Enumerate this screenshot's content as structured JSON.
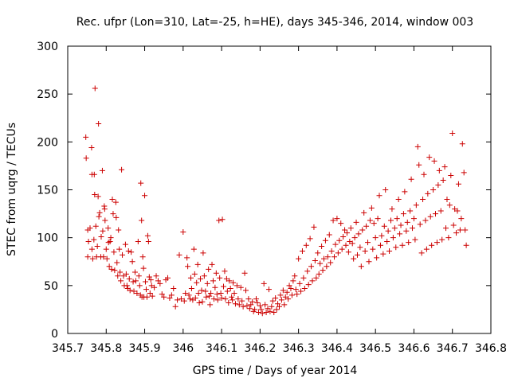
{
  "chart_data": {
    "type": "scatter",
    "title": "Rec. ufpr (Lon=310, Lat=-25, h=HE), days 345-346, 2014, window 003",
    "xlabel": "GPS time / Days of year 2014",
    "ylabel": "STEC from uqrg / TECUs",
    "xlim": [
      345.7,
      346.8
    ],
    "ylim": [
      0,
      300
    ],
    "xticks": [
      345.7,
      345.8,
      345.9,
      346.0,
      346.1,
      346.2,
      346.3,
      346.4,
      346.5,
      346.6,
      346.7,
      346.8
    ],
    "xtick_labels": [
      "345.7",
      "345.8",
      "345.9",
      "346",
      "346.1",
      "346.2",
      "346.3",
      "346.4",
      "346.5",
      "346.6",
      "346.7",
      "346.8"
    ],
    "yticks": [
      0,
      50,
      100,
      150,
      200,
      250,
      300
    ],
    "ytick_labels": [
      "0",
      "50",
      "100",
      "150",
      "200",
      "250",
      "300"
    ],
    "grid": false,
    "marker": "plus",
    "color": "#cc0000",
    "points": [
      [
        345.747,
        205
      ],
      [
        345.748,
        183
      ],
      [
        345.752,
        108
      ],
      [
        345.754,
        96
      ],
      [
        345.752,
        80
      ],
      [
        345.758,
        110
      ],
      [
        345.762,
        194
      ],
      [
        345.763,
        166
      ],
      [
        345.763,
        88
      ],
      [
        345.765,
        78
      ],
      [
        345.768,
        98
      ],
      [
        345.769,
        166
      ],
      [
        345.77,
        145
      ],
      [
        345.771,
        256
      ],
      [
        345.773,
        112
      ],
      [
        345.775,
        80
      ],
      [
        345.777,
        91
      ],
      [
        345.779,
        143
      ],
      [
        345.78,
        219
      ],
      [
        345.781,
        122
      ],
      [
        345.783,
        126
      ],
      [
        345.786,
        80
      ],
      [
        345.787,
        101
      ],
      [
        345.79,
        170
      ],
      [
        345.791,
        107
      ],
      [
        345.793,
        80
      ],
      [
        345.795,
        133
      ],
      [
        345.796,
        130
      ],
      [
        345.797,
        118
      ],
      [
        345.8,
        88
      ],
      [
        345.802,
        78
      ],
      [
        345.805,
        110
      ],
      [
        345.806,
        95
      ],
      [
        345.808,
        70
      ],
      [
        345.81,
        96
      ],
      [
        345.812,
        100
      ],
      [
        345.814,
        67
      ],
      [
        345.816,
        140
      ],
      [
        345.818,
        125
      ],
      [
        345.82,
        85
      ],
      [
        345.822,
        66
      ],
      [
        345.825,
        137
      ],
      [
        345.826,
        121
      ],
      [
        345.828,
        74
      ],
      [
        345.83,
        60
      ],
      [
        345.832,
        108
      ],
      [
        345.834,
        88
      ],
      [
        345.836,
        64
      ],
      [
        345.838,
        55
      ],
      [
        345.84,
        171
      ],
      [
        345.842,
        82
      ],
      [
        345.845,
        60
      ],
      [
        345.847,
        50
      ],
      [
        345.85,
        93
      ],
      [
        345.852,
        62
      ],
      [
        345.854,
        50
      ],
      [
        345.856,
        47
      ],
      [
        345.858,
        86
      ],
      [
        345.86,
        57
      ],
      [
        345.862,
        45
      ],
      [
        345.865,
        85
      ],
      [
        345.868,
        75
      ],
      [
        345.87,
        54
      ],
      [
        345.872,
        44
      ],
      [
        345.875,
        64
      ],
      [
        345.877,
        55
      ],
      [
        345.88,
        42
      ],
      [
        345.883,
        96
      ],
      [
        345.885,
        60
      ],
      [
        345.887,
        50
      ],
      [
        345.889,
        40
      ],
      [
        345.89,
        157
      ],
      [
        345.892,
        118
      ],
      [
        345.893,
        38
      ],
      [
        345.895,
        80
      ],
      [
        345.897,
        68
      ],
      [
        345.898,
        38
      ],
      [
        345.9,
        144
      ],
      [
        345.902,
        54
      ],
      [
        345.904,
        46
      ],
      [
        345.906,
        38
      ],
      [
        345.908,
        102
      ],
      [
        345.91,
        96
      ],
      [
        345.912,
        59
      ],
      [
        345.914,
        42
      ],
      [
        345.916,
        56
      ],
      [
        345.918,
        50
      ],
      [
        345.92,
        39
      ],
      [
        345.925,
        48
      ],
      [
        345.93,
        60
      ],
      [
        345.935,
        55
      ],
      [
        345.94,
        52
      ],
      [
        345.945,
        41
      ],
      [
        345.95,
        38
      ],
      [
        345.955,
        56
      ],
      [
        345.96,
        58
      ],
      [
        345.965,
        37
      ],
      [
        345.97,
        40
      ],
      [
        345.975,
        47
      ],
      [
        345.98,
        28
      ],
      [
        345.985,
        35
      ],
      [
        345.99,
        82
      ],
      [
        345.995,
        36
      ],
      [
        346.0,
        106
      ],
      [
        346.003,
        34
      ],
      [
        346.006,
        42
      ],
      [
        346.01,
        79
      ],
      [
        346.012,
        70
      ],
      [
        346.015,
        40
      ],
      [
        346.018,
        36
      ],
      [
        346.02,
        58
      ],
      [
        346.022,
        47
      ],
      [
        346.025,
        35
      ],
      [
        346.028,
        88
      ],
      [
        346.03,
        62
      ],
      [
        346.032,
        37
      ],
      [
        346.035,
        53
      ],
      [
        346.038,
        72
      ],
      [
        346.04,
        42
      ],
      [
        346.042,
        32
      ],
      [
        346.045,
        57
      ],
      [
        346.048,
        45
      ],
      [
        346.05,
        33
      ],
      [
        346.052,
        84
      ],
      [
        346.055,
        60
      ],
      [
        346.058,
        44
      ],
      [
        346.06,
        38
      ],
      [
        346.063,
        52
      ],
      [
        346.066,
        67
      ],
      [
        346.068,
        39
      ],
      [
        346.07,
        30
      ],
      [
        346.072,
        42
      ],
      [
        346.075,
        72
      ],
      [
        346.078,
        55
      ],
      [
        346.08,
        36
      ],
      [
        346.083,
        48
      ],
      [
        346.086,
        63
      ],
      [
        346.088,
        41
      ],
      [
        346.09,
        35
      ],
      [
        346.093,
        118
      ],
      [
        346.095,
        58
      ],
      [
        346.098,
        42
      ],
      [
        346.1,
        37
      ],
      [
        346.102,
        119
      ],
      [
        346.105,
        49
      ],
      [
        346.108,
        65
      ],
      [
        346.11,
        36
      ],
      [
        346.113,
        57
      ],
      [
        346.115,
        44
      ],
      [
        346.118,
        32
      ],
      [
        346.12,
        55
      ],
      [
        346.123,
        47
      ],
      [
        346.126,
        38
      ],
      [
        346.128,
        35
      ],
      [
        346.13,
        53
      ],
      [
        346.133,
        42
      ],
      [
        346.136,
        31
      ],
      [
        346.14,
        50
      ],
      [
        346.143,
        36
      ],
      [
        346.146,
        30
      ],
      [
        346.15,
        48
      ],
      [
        346.153,
        34
      ],
      [
        346.156,
        28
      ],
      [
        346.16,
        63
      ],
      [
        346.163,
        45
      ],
      [
        346.166,
        29
      ],
      [
        346.17,
        36
      ],
      [
        346.173,
        26
      ],
      [
        346.176,
        30
      ],
      [
        346.18,
        33
      ],
      [
        346.183,
        23
      ],
      [
        346.186,
        25
      ],
      [
        346.19,
        36
      ],
      [
        346.193,
        32
      ],
      [
        346.196,
        22
      ],
      [
        346.2,
        29
      ],
      [
        346.203,
        25
      ],
      [
        346.206,
        21
      ],
      [
        346.21,
        52
      ],
      [
        346.213,
        30
      ],
      [
        346.216,
        22
      ],
      [
        346.22,
        26
      ],
      [
        346.223,
        46
      ],
      [
        346.226,
        23
      ],
      [
        346.23,
        28
      ],
      [
        346.233,
        34
      ],
      [
        346.236,
        22
      ],
      [
        346.24,
        37
      ],
      [
        346.243,
        25
      ],
      [
        346.246,
        31
      ],
      [
        346.25,
        28
      ],
      [
        346.253,
        40
      ],
      [
        346.256,
        35
      ],
      [
        346.26,
        45
      ],
      [
        346.263,
        30
      ],
      [
        346.266,
        38
      ],
      [
        346.27,
        43
      ],
      [
        346.273,
        36
      ],
      [
        346.276,
        50
      ],
      [
        346.28,
        47
      ],
      [
        346.283,
        40
      ],
      [
        346.286,
        55
      ],
      [
        346.29,
        60
      ],
      [
        346.293,
        46
      ],
      [
        346.296,
        41
      ],
      [
        346.3,
        78
      ],
      [
        346.303,
        52
      ],
      [
        346.306,
        44
      ],
      [
        346.31,
        86
      ],
      [
        346.313,
        58
      ],
      [
        346.316,
        47
      ],
      [
        346.32,
        92
      ],
      [
        346.323,
        65
      ],
      [
        346.326,
        51
      ],
      [
        346.33,
        99
      ],
      [
        346.333,
        70
      ],
      [
        346.336,
        55
      ],
      [
        346.34,
        111
      ],
      [
        346.343,
        76
      ],
      [
        346.346,
        58
      ],
      [
        346.35,
        84
      ],
      [
        346.353,
        62
      ],
      [
        346.356,
        73
      ],
      [
        346.36,
        91
      ],
      [
        346.363,
        66
      ],
      [
        346.366,
        78
      ],
      [
        346.37,
        97
      ],
      [
        346.373,
        70
      ],
      [
        346.376,
        80
      ],
      [
        346.38,
        103
      ],
      [
        346.383,
        74
      ],
      [
        346.386,
        86
      ],
      [
        346.39,
        118
      ],
      [
        346.393,
        80
      ],
      [
        346.396,
        93
      ],
      [
        346.4,
        120
      ],
      [
        346.403,
        84
      ],
      [
        346.406,
        97
      ],
      [
        346.41,
        115
      ],
      [
        346.413,
        88
      ],
      [
        346.416,
        101
      ],
      [
        346.42,
        108
      ],
      [
        346.423,
        92
      ],
      [
        346.426,
        105
      ],
      [
        346.43,
        85
      ],
      [
        346.433,
        96
      ],
      [
        346.436,
        110
      ],
      [
        346.44,
        94
      ],
      [
        346.443,
        78
      ],
      [
        346.446,
        100
      ],
      [
        346.45,
        116
      ],
      [
        346.453,
        82
      ],
      [
        346.456,
        104
      ],
      [
        346.46,
        90
      ],
      [
        346.463,
        70
      ],
      [
        346.466,
        108
      ],
      [
        346.47,
        126
      ],
      [
        346.473,
        86
      ],
      [
        346.476,
        112
      ],
      [
        346.48,
        95
      ],
      [
        346.483,
        75
      ],
      [
        346.486,
        118
      ],
      [
        346.49,
        131
      ],
      [
        346.493,
        88
      ],
      [
        346.496,
        115
      ],
      [
        346.5,
        100
      ],
      [
        346.503,
        79
      ],
      [
        346.506,
        120
      ],
      [
        346.51,
        144
      ],
      [
        346.513,
        92
      ],
      [
        346.516,
        102
      ],
      [
        346.52,
        83
      ],
      [
        346.523,
        112
      ],
      [
        346.526,
        150
      ],
      [
        346.53,
        96
      ],
      [
        346.533,
        107
      ],
      [
        346.536,
        86
      ],
      [
        346.54,
        118
      ],
      [
        346.543,
        130
      ],
      [
        346.546,
        100
      ],
      [
        346.55,
        110
      ],
      [
        346.553,
        90
      ],
      [
        346.556,
        120
      ],
      [
        346.56,
        140
      ],
      [
        346.563,
        104
      ],
      [
        346.566,
        113
      ],
      [
        346.57,
        92
      ],
      [
        346.573,
        125
      ],
      [
        346.576,
        148
      ],
      [
        346.58,
        107
      ],
      [
        346.583,
        116
      ],
      [
        346.586,
        95
      ],
      [
        346.59,
        128
      ],
      [
        346.593,
        161
      ],
      [
        346.596,
        110
      ],
      [
        346.6,
        120
      ],
      [
        346.603,
        98
      ],
      [
        346.606,
        134
      ],
      [
        346.61,
        195
      ],
      [
        346.613,
        176
      ],
      [
        346.616,
        114
      ],
      [
        346.62,
        84
      ],
      [
        346.623,
        140
      ],
      [
        346.626,
        166
      ],
      [
        346.63,
        118
      ],
      [
        346.633,
        88
      ],
      [
        346.636,
        146
      ],
      [
        346.64,
        184
      ],
      [
        346.643,
        122
      ],
      [
        346.646,
        92
      ],
      [
        346.65,
        150
      ],
      [
        346.653,
        180
      ],
      [
        346.656,
        125
      ],
      [
        346.66,
        95
      ],
      [
        346.663,
        155
      ],
      [
        346.666,
        170
      ],
      [
        346.67,
        128
      ],
      [
        346.673,
        98
      ],
      [
        346.676,
        160
      ],
      [
        346.68,
        174
      ],
      [
        346.683,
        110
      ],
      [
        346.686,
        140
      ],
      [
        346.69,
        100
      ],
      [
        346.693,
        134
      ],
      [
        346.696,
        165
      ],
      [
        346.7,
        209
      ],
      [
        346.703,
        113
      ],
      [
        346.706,
        130
      ],
      [
        346.71,
        105
      ],
      [
        346.713,
        128
      ],
      [
        346.716,
        156
      ],
      [
        346.72,
        108
      ],
      [
        346.723,
        120
      ],
      [
        346.726,
        198
      ],
      [
        346.73,
        168
      ],
      [
        346.733,
        108
      ],
      [
        346.736,
        92
      ]
    ]
  }
}
